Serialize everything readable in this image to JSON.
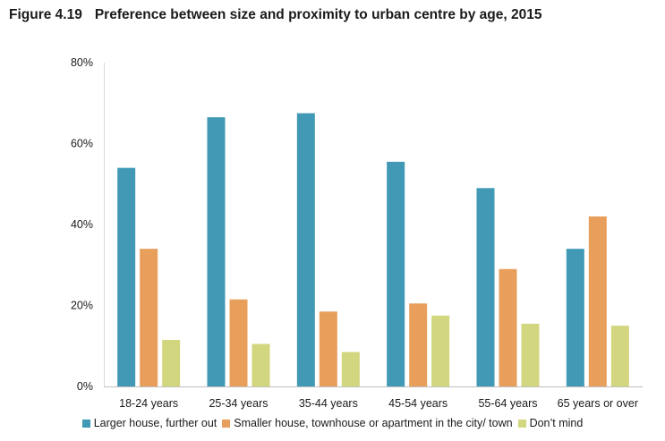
{
  "figure": {
    "label": "Figure 4.19",
    "title": "Preference between size and proximity to urban centre by age, 2015"
  },
  "chart_data": {
    "type": "bar",
    "title": "Preference between size and proximity to urban centre by age, 2015",
    "categories": [
      "18-24 years",
      "25-34 years",
      "35-44 years",
      "45-54 years",
      "55-64 years",
      "65 years or over"
    ],
    "series": [
      {
        "name": "Larger house, further out",
        "color": "#4199b5",
        "values": [
          54,
          66.5,
          67.5,
          55.5,
          49,
          34
        ]
      },
      {
        "name": "Smaller house, townhouse or apartment in the city/ town",
        "color": "#e89f5b",
        "values": [
          34,
          21.5,
          18.5,
          20.5,
          29,
          42
        ]
      },
      {
        "name": "Don’t mind",
        "color": "#d2d67e",
        "values": [
          11.5,
          10.5,
          8.5,
          17.5,
          15.5,
          15
        ]
      }
    ],
    "yticks": [
      "0%",
      "20%",
      "40%",
      "60%",
      "80%"
    ],
    "ylim": [
      0,
      80
    ],
    "xlabel": "",
    "ylabel": "",
    "grid": false,
    "legend_position": "bottom"
  }
}
